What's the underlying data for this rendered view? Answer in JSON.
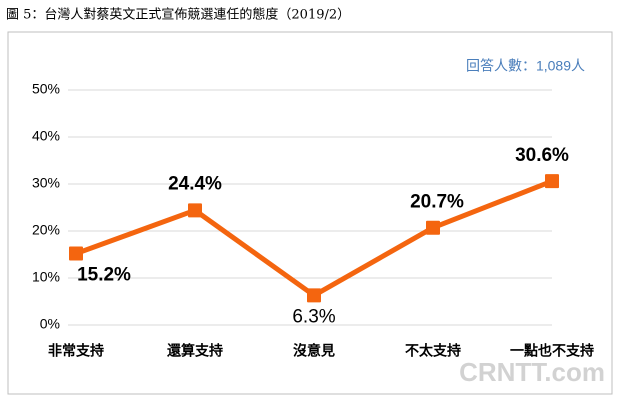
{
  "chart_data": {
    "type": "line",
    "title": "圖 5：台灣人對蔡英文正式宣佈競選連任的態度（2019/2）",
    "annotation": "回答人數：1,089人",
    "watermark": "CRNTT.com",
    "categories": [
      "非常支持",
      "還算支持",
      "沒意見",
      "不太支持",
      "一點也不支持"
    ],
    "values": [
      15.2,
      24.4,
      6.3,
      20.7,
      30.6
    ],
    "value_labels": [
      "15.2%",
      "24.4%",
      "6.3%",
      "20.7%",
      "30.6%"
    ],
    "color": "#f4650f",
    "ylim": [
      0,
      50
    ],
    "yticks": [
      {
        "value": 0,
        "label": "0%"
      },
      {
        "value": 10,
        "label": "10%"
      },
      {
        "value": 20,
        "label": "20%"
      },
      {
        "value": 30,
        "label": "30%"
      },
      {
        "value": 40,
        "label": "40%"
      },
      {
        "value": 50,
        "label": "50%"
      }
    ],
    "grid": true
  }
}
